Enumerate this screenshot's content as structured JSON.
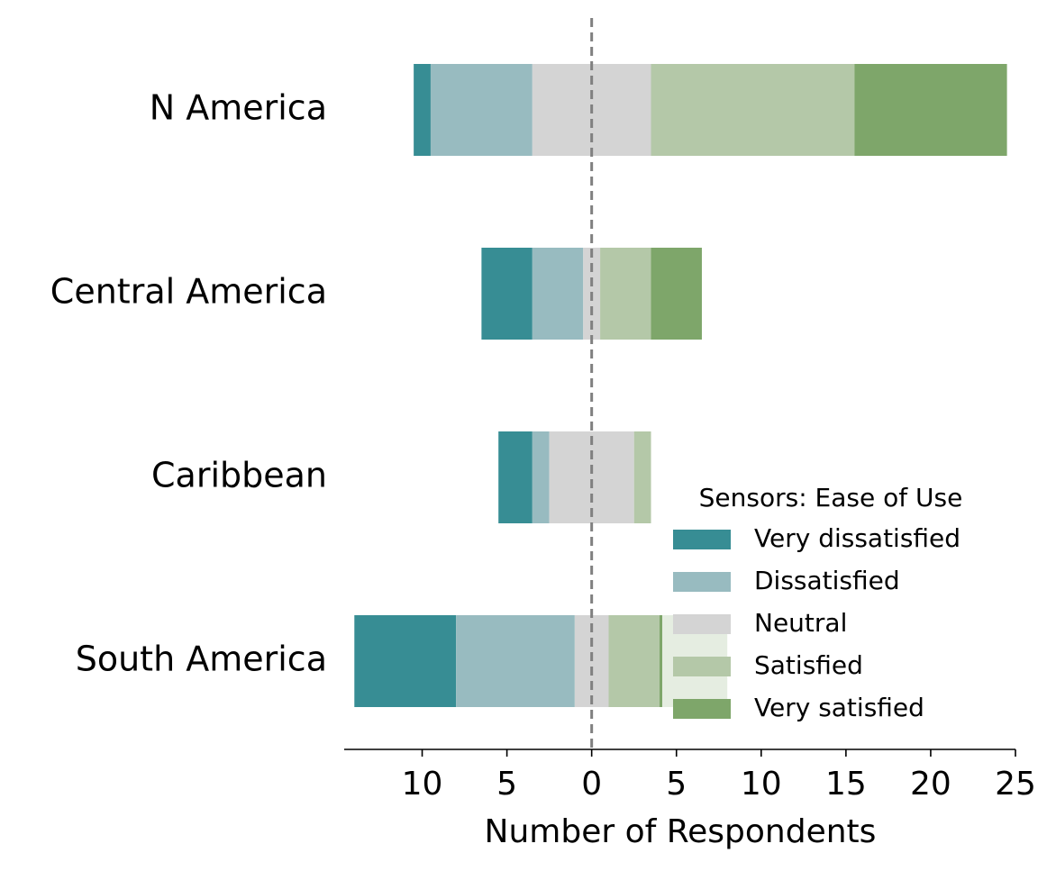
{
  "chart_data": {
    "type": "bar",
    "orientation": "horizontal",
    "layout": "diverging",
    "xlabel": "Number of Respondents",
    "categories": [
      "N America",
      "Central America",
      "Caribbean",
      "South America"
    ],
    "series": [
      {
        "name": "Very dissatisfied",
        "color": "#378d94",
        "values": [
          1,
          3,
          2,
          6
        ]
      },
      {
        "name": "Dissatisfied",
        "color": "#98bbc0",
        "values": [
          6,
          3,
          1,
          7
        ]
      },
      {
        "name": "Neutral",
        "color": "#d4d4d4",
        "values": [
          7,
          1,
          5,
          2
        ]
      },
      {
        "name": "Satisfied",
        "color": "#b4c8a8",
        "values": [
          12,
          3,
          1,
          3
        ]
      },
      {
        "name": "Very satisfied",
        "color": "#7ea66a",
        "values": [
          9,
          3,
          0,
          4
        ]
      }
    ],
    "legend_title": "Sensors: Ease of Use",
    "legend": "lower right",
    "xlim": [
      -14.6,
      25
    ],
    "xticks": [
      {
        "value": -10,
        "label": "10"
      },
      {
        "value": -5,
        "label": "5"
      },
      0,
      5,
      10,
      15,
      20,
      25
    ]
  }
}
